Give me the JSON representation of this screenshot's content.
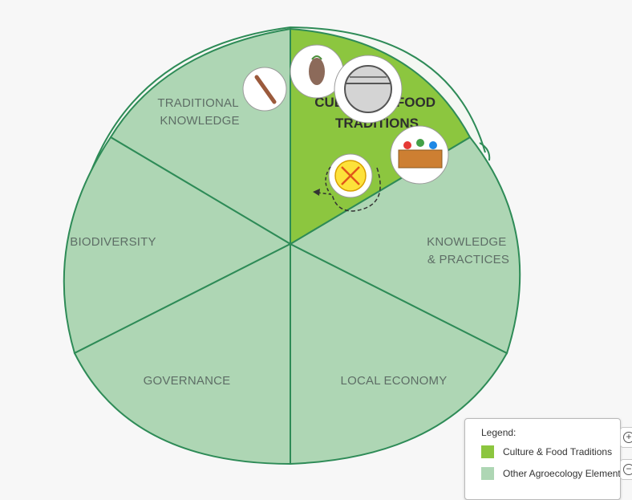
{
  "diagram": {
    "segments": [
      {
        "id": "culture",
        "lines": [
          "CULTURE & FOOD",
          "TRADITIONS"
        ],
        "highlighted": true
      },
      {
        "id": "knowledge-practices",
        "lines": [
          "KNOWLEDGE",
          "& PRACTICES"
        ],
        "highlighted": false
      },
      {
        "id": "local-economy",
        "lines": [
          "LOCAL ECONOMY"
        ],
        "highlighted": false
      },
      {
        "id": "governance",
        "lines": [
          "GOVERNANCE"
        ],
        "highlighted": false
      },
      {
        "id": "biodiversity",
        "lines": [
          "BIODIVERSITY"
        ],
        "highlighted": false
      },
      {
        "id": "traditional-knowledge",
        "lines": [
          "TRADITIONAL",
          "KNOWLEDGE"
        ],
        "highlighted": false
      }
    ],
    "icons": [
      "spoon-icon",
      "cocoa-pod-icon",
      "cooking-pot-icon",
      "food-basket-icon",
      "crossed-plate-icon",
      "cycle-arrow-icon"
    ]
  },
  "legend": {
    "title": "Legend:",
    "items": [
      {
        "label": "Culture & Food Traditions",
        "color": "#8cc63f"
      },
      {
        "label": "Other Agroecology Elements",
        "color": "#aed6b4"
      }
    ]
  },
  "zoom": {
    "in_icon": "zoom-in-icon",
    "out_icon": "zoom-out-icon"
  },
  "colors": {
    "highlight": "#8cc63f",
    "segment": "#aed6b4",
    "stroke": "#2e8b57"
  }
}
